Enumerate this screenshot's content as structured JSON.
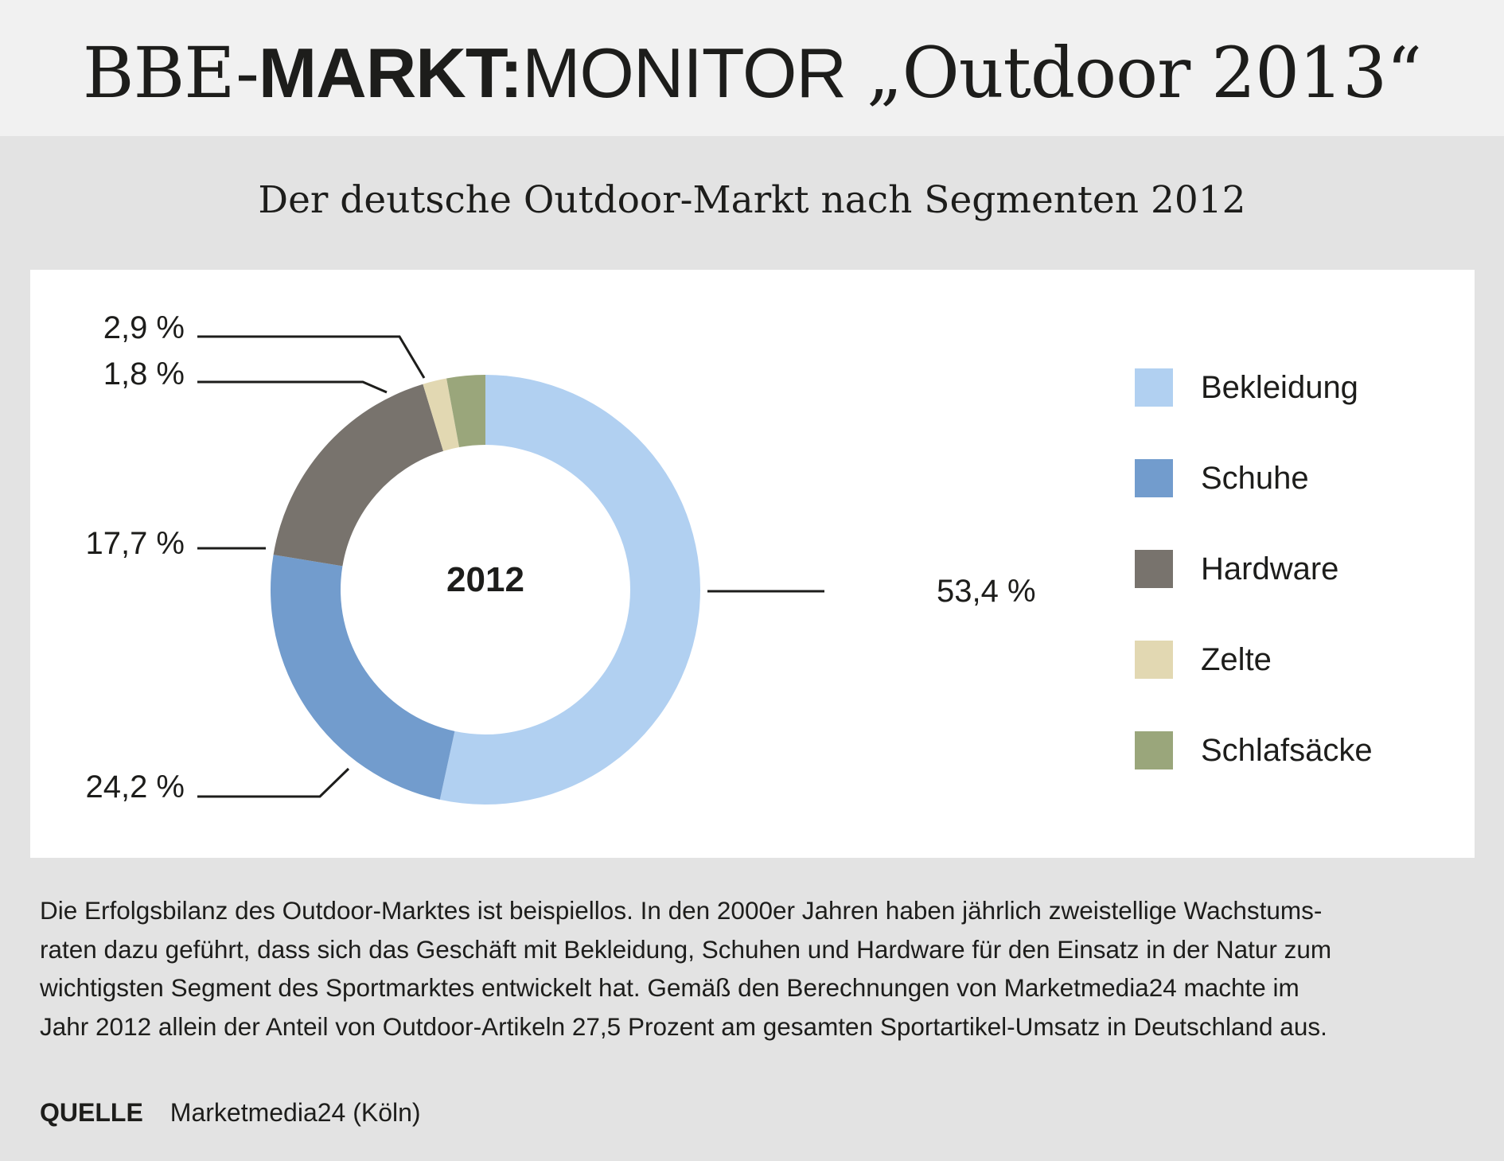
{
  "header": {
    "title_part1": "BBE-",
    "title_part2": "MARKT:",
    "title_part3": "MONITOR",
    "title_part4": "„Outdoor 2013“"
  },
  "chart_title": "Der deutsche Outdoor-Markt nach Segmenten 2012",
  "chart_data": {
    "type": "pie",
    "variant": "donut",
    "title": "Der deutsche Outdoor-Markt nach Segmenten 2012",
    "center_label": "2012",
    "categories": [
      "Bekleidung",
      "Schuhe",
      "Hardware",
      "Zelte",
      "Schlafsäcke"
    ],
    "values": [
      53.4,
      24.2,
      17.7,
      1.8,
      2.9
    ],
    "value_labels": [
      "53,4 %",
      "24,2 %",
      "17,7 %",
      "1,8 %",
      "2,9 %"
    ],
    "colors": [
      "#b1d0f1",
      "#729ccd",
      "#78736d",
      "#e2d8b2",
      "#9aa67b"
    ],
    "start_angle_deg": 0,
    "direction": "clockwise",
    "legend_position": "right"
  },
  "description_lines": [
    "Die Erfolgsbilanz des Outdoor-Marktes ist beispiellos. In den 2000er Jahren haben jährlich zweistellige Wachstums-",
    "raten dazu geführt, dass sich das Geschäft mit Bekleidung, Schuhen und Hardware für den Einsatz in der Natur zum",
    "wichtigsten Segment des Sportmarktes entwickelt hat. Gemäß den Berechnungen von Marketmedia24 machte im",
    "Jahr 2012 allein der Anteil von Outdoor-Artikeln 27,5 Prozent am gesamten Sportartikel-Umsatz in Deutschland aus."
  ],
  "source": {
    "label": "QUELLE",
    "text": "Marketmedia24 (Köln)"
  }
}
